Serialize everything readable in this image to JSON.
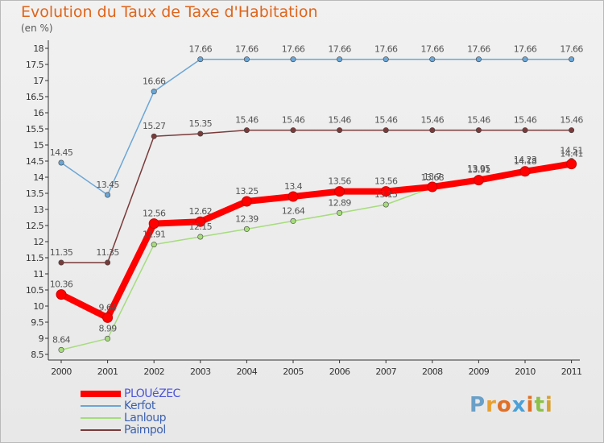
{
  "title": "Evolution du Taux de Taxe d'Habitation",
  "subtitle": "(en %)",
  "brand": {
    "letters": [
      "P",
      "r",
      "o",
      "x",
      "i",
      "t",
      "i"
    ],
    "colors": [
      "#6aa0c8",
      "#e8a030",
      "#e07028",
      "#4aa0d8",
      "#e07028",
      "#8cc04a",
      "#d8a030"
    ]
  },
  "chart_data": {
    "type": "line",
    "title": "Evolution du Taux de Taxe d'Habitation",
    "ylabel": "(en %)",
    "xlabel": "",
    "ylim": [
      8.5,
      18
    ],
    "grid": false,
    "legend_position": "bottom-left",
    "x": [
      "2000",
      "2001",
      "2002",
      "2003",
      "2004",
      "2005",
      "2006",
      "2007",
      "2008",
      "2009",
      "2010",
      "2011"
    ],
    "y_ticks": [
      "8.5",
      "9",
      "9.5",
      "10",
      "10.5",
      "11",
      "11.5",
      "12",
      "12.5",
      "13",
      "13.5",
      "14",
      "14.5",
      "15",
      "15.5",
      "16",
      "16.5",
      "17",
      "17.5",
      "18"
    ],
    "series": [
      {
        "name": "PLOUéZEC",
        "color": "#ff0000",
        "emphasis": "thick",
        "values": [
          10.36,
          9.64,
          12.56,
          12.62,
          13.25,
          13.4,
          13.56,
          13.56,
          13.7,
          13.91,
          14.18,
          14.41
        ],
        "labels": [
          "10.36",
          "9.64",
          "12.56",
          "12.62",
          "13.25",
          "13.4",
          "13.56",
          "13.56",
          "13.7",
          "13.91",
          "14.18",
          "14.41"
        ]
      },
      {
        "name": "Kerfot",
        "color": "#6aa6d6",
        "values": [
          14.45,
          13.45,
          16.66,
          17.66,
          17.66,
          17.66,
          17.66,
          17.66,
          17.66,
          17.66,
          17.66,
          17.66
        ],
        "labels": [
          "14.45",
          "13.45",
          "16.66",
          "17.66",
          "17.66",
          "17.66",
          "17.66",
          "17.66",
          "17.66",
          "17.66",
          "17.66",
          "17.66"
        ]
      },
      {
        "name": "Lanloup",
        "color": "#a6dc7c",
        "values": [
          8.64,
          8.99,
          11.91,
          12.15,
          12.39,
          12.64,
          12.89,
          13.15,
          13.68,
          13.95,
          14.23,
          14.51
        ],
        "labels": [
          "8.64",
          "8.99",
          "11.91",
          "12.15",
          "12.39",
          "12.64",
          "12.89",
          "13.15",
          "13.68",
          "13.95",
          "14.23",
          "14.51"
        ]
      },
      {
        "name": "Paimpol",
        "color": "#7a3a3a",
        "values": [
          11.35,
          11.35,
          15.27,
          15.35,
          15.46,
          15.46,
          15.46,
          15.46,
          15.46,
          15.46,
          15.46,
          15.46
        ],
        "labels": [
          "11.35",
          "11.35",
          "15.27",
          "15.35",
          "15.46",
          "15.46",
          "15.46",
          "15.46",
          "15.46",
          "15.46",
          "15.46",
          "15.46"
        ]
      }
    ]
  }
}
